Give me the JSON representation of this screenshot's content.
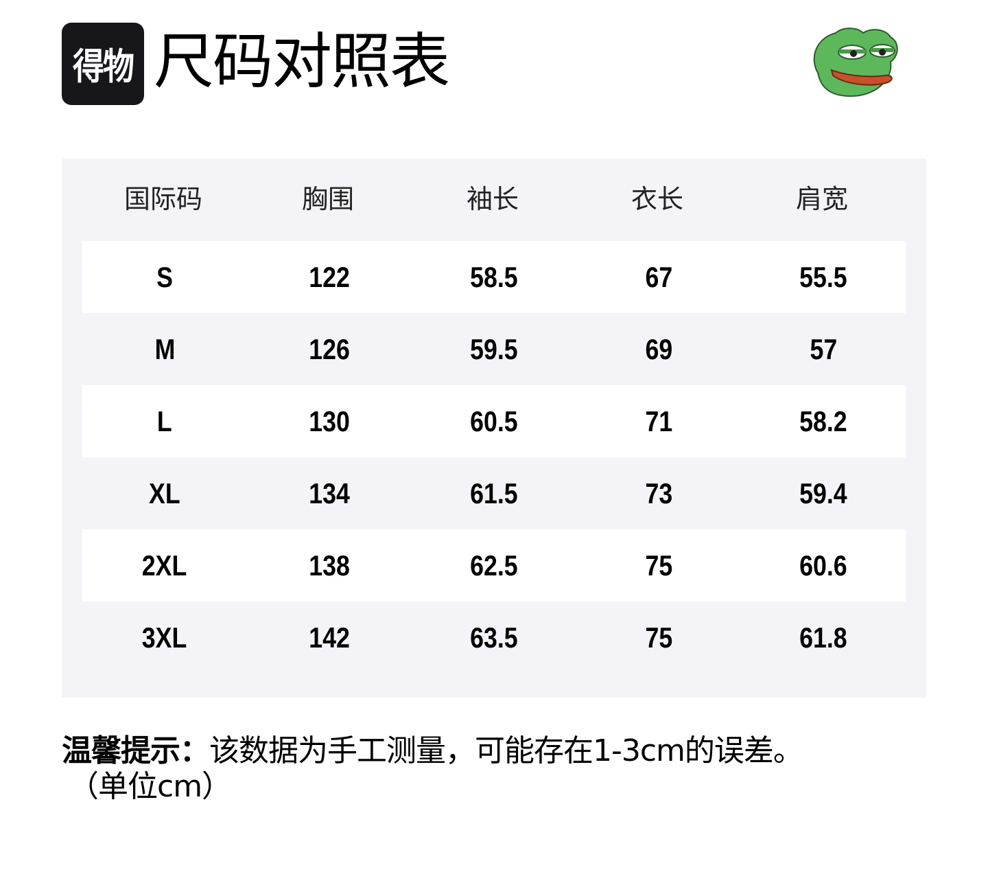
{
  "header": {
    "logo_text": "得物",
    "title": "尺码对照表",
    "mascot_icon": "frog-icon"
  },
  "table": {
    "columns": [
      "国际码",
      "胸围",
      "袖长",
      "衣长",
      "肩宽"
    ],
    "rows": [
      [
        "S",
        "122",
        "58.5",
        "67",
        "55.5"
      ],
      [
        "M",
        "126",
        "59.5",
        "69",
        "57"
      ],
      [
        "L",
        "130",
        "60.5",
        "71",
        "58.2"
      ],
      [
        "XL",
        "134",
        "61.5",
        "73",
        "59.4"
      ],
      [
        "2XL",
        "138",
        "62.5",
        "75",
        "60.6"
      ],
      [
        "3XL",
        "142",
        "63.5",
        "75",
        "61.8"
      ]
    ]
  },
  "note": {
    "label": "温馨提示：",
    "text": "该数据为手工测量，可能存在1-3cm的误差。",
    "unit": "（单位cm）"
  },
  "colors": {
    "table_bg": "#f4f4f8",
    "logo_bg": "#17171b"
  }
}
